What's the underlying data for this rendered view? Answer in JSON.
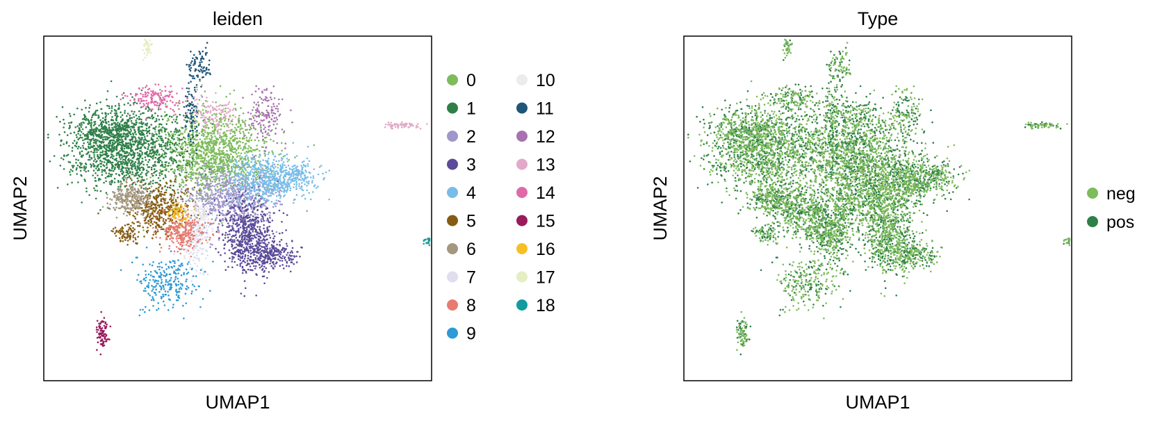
{
  "chart_data": [
    {
      "type": "scatter",
      "title": "leiden",
      "xlabel": "UMAP1",
      "ylabel": "UMAP2",
      "xlim": [
        -6,
        18
      ],
      "ylim": [
        -6,
        16
      ],
      "grid": false,
      "ticks": false,
      "legend": {
        "placement": "right",
        "columns": 2
      },
      "series": [
        {
          "name": "0",
          "color": "#7dbb5b",
          "clusters": [
            {
              "cx": 4.5,
              "cy": 8.5,
              "sx": 1.6,
              "sy": 1.4,
              "n": 1300
            }
          ]
        },
        {
          "name": "1",
          "color": "#2e8048",
          "clusters": [
            {
              "cx": -1.0,
              "cy": 8.8,
              "sx": 1.8,
              "sy": 1.3,
              "n": 1400
            },
            {
              "cx": -2.2,
              "cy": 10.0,
              "sx": 0.9,
              "sy": 0.6,
              "n": 250
            }
          ]
        },
        {
          "name": "2",
          "color": "#a096cc",
          "clusters": [
            {
              "cx": 5.5,
              "cy": 5.7,
              "sx": 1.4,
              "sy": 0.9,
              "n": 700
            }
          ]
        },
        {
          "name": "3",
          "color": "#5b4b99",
          "clusters": [
            {
              "cx": 6.7,
              "cy": 3.2,
              "sx": 0.8,
              "sy": 1.2,
              "n": 650
            },
            {
              "cx": 8.2,
              "cy": 2.0,
              "sx": 0.7,
              "sy": 0.4,
              "n": 200
            }
          ]
        },
        {
          "name": "4",
          "color": "#78bde8",
          "clusters": [
            {
              "cx": 8.0,
              "cy": 6.9,
              "sx": 1.2,
              "sy": 0.7,
              "n": 600
            },
            {
              "cx": 9.8,
              "cy": 7.2,
              "sx": 0.5,
              "sy": 0.3,
              "n": 80
            }
          ]
        },
        {
          "name": "5",
          "color": "#865c13",
          "clusters": [
            {
              "cx": 1.2,
              "cy": 5.0,
              "sx": 0.9,
              "sy": 0.8,
              "n": 420
            },
            {
              "cx": -0.9,
              "cy": 3.4,
              "sx": 0.4,
              "sy": 0.3,
              "n": 80
            }
          ]
        },
        {
          "name": "6",
          "color": "#a39780",
          "clusters": [
            {
              "cx": -0.6,
              "cy": 5.6,
              "sx": 0.7,
              "sy": 0.5,
              "n": 260
            }
          ]
        },
        {
          "name": "7",
          "color": "#dedeee",
          "clusters": [
            {
              "cx": 3.4,
              "cy": 3.0,
              "sx": 0.4,
              "sy": 1.0,
              "n": 160
            }
          ]
        },
        {
          "name": "8",
          "color": "#e87a70",
          "clusters": [
            {
              "cx": 2.5,
              "cy": 3.5,
              "sx": 0.7,
              "sy": 0.6,
              "n": 260
            }
          ]
        },
        {
          "name": "9",
          "color": "#2d99d6",
          "clusters": [
            {
              "cx": 1.6,
              "cy": 0.4,
              "sx": 0.9,
              "sy": 0.8,
              "n": 240
            }
          ]
        },
        {
          "name": "10",
          "color": "#ececec",
          "clusters": [
            {
              "cx": 3.7,
              "cy": 4.6,
              "sx": 0.3,
              "sy": 0.5,
              "n": 70
            }
          ]
        },
        {
          "name": "11",
          "color": "#1f5578",
          "clusters": [
            {
              "cx": 3.6,
              "cy": 14.0,
              "sx": 0.35,
              "sy": 0.6,
              "n": 80
            },
            {
              "cx": 3.1,
              "cy": 11.0,
              "sx": 0.25,
              "sy": 1.2,
              "n": 90
            }
          ]
        },
        {
          "name": "12",
          "color": "#a872b0",
          "clusters": [
            {
              "cx": 7.7,
              "cy": 11.0,
              "sx": 0.6,
              "sy": 0.9,
              "n": 150
            }
          ]
        },
        {
          "name": "13",
          "color": "#e3a9c9",
          "clusters": [
            {
              "cx": 4.5,
              "cy": 11.0,
              "sx": 0.7,
              "sy": 0.6,
              "n": 120
            },
            {
              "cx": 16.2,
              "cy": 10.3,
              "sx": 0.5,
              "sy": 0.1,
              "n": 60
            }
          ]
        },
        {
          "name": "14",
          "color": "#e06aa8",
          "clusters": [
            {
              "cx": 0.9,
              "cy": 12.0,
              "sx": 0.8,
              "sy": 0.4,
              "n": 150
            }
          ]
        },
        {
          "name": "15",
          "color": "#991b5b",
          "clusters": [
            {
              "cx": -2.4,
              "cy": -3.0,
              "sx": 0.2,
              "sy": 0.6,
              "n": 90
            }
          ]
        },
        {
          "name": "16",
          "color": "#f7bf25",
          "clusters": [
            {
              "cx": 2.3,
              "cy": 4.7,
              "sx": 0.3,
              "sy": 0.3,
              "n": 60
            }
          ]
        },
        {
          "name": "17",
          "color": "#e5eec3",
          "clusters": [
            {
              "cx": 0.4,
              "cy": 15.2,
              "sx": 0.15,
              "sy": 0.3,
              "n": 40
            }
          ]
        },
        {
          "name": "18",
          "color": "#129c9f",
          "clusters": [
            {
              "cx": 17.8,
              "cy": 2.9,
              "sx": 0.15,
              "sy": 0.1,
              "n": 25
            }
          ]
        }
      ]
    },
    {
      "type": "scatter",
      "title": "Type",
      "xlabel": "UMAP1",
      "ylabel": "UMAP2",
      "xlim": [
        -6,
        18
      ],
      "ylim": [
        -6,
        16
      ],
      "grid": false,
      "ticks": false,
      "legend": {
        "placement": "right",
        "columns": 1
      },
      "series": [
        {
          "name": "neg",
          "color": "#7dbb5b"
        },
        {
          "name": "pos",
          "color": "#2e8048"
        }
      ]
    }
  ]
}
